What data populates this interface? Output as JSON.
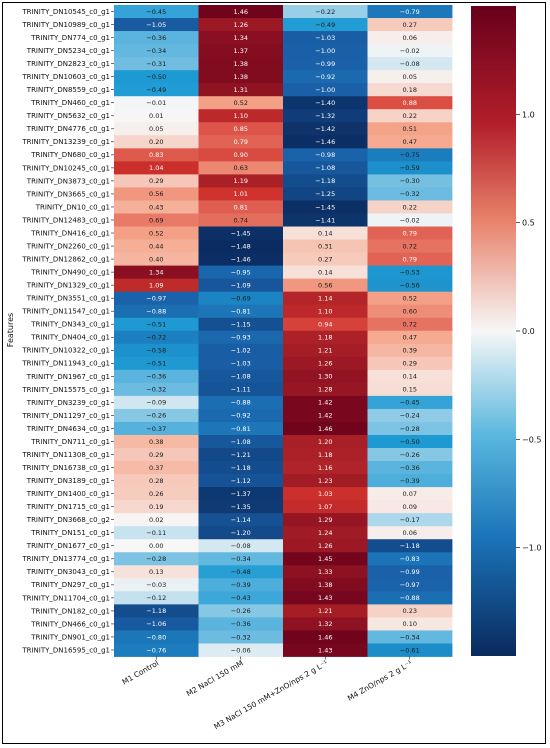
{
  "chart_data": {
    "type": "heatmap",
    "ylabel": "Features",
    "columns": [
      "M1 Control",
      "M2 NaCl 150 mM",
      "M3 NaCl 150 mM+ZnO/nps 2 g L⁻¹",
      "M4 ZnO/nps 2 g L⁻¹"
    ],
    "rows": [
      "TRINITY_DN10545_c0_g1",
      "TRINITY_DN10989_c0_g1",
      "TRINITY_DN774_c0_g1",
      "TRINITY_DN5234_c0_g1",
      "TRINITY_DN2823_c0_g1",
      "TRINITY_DN10603_c0_g1",
      "TRINITY_DN8559_c0_g1",
      "TRINITY_DN460_c0_g1",
      "TRINITY_DN5632_c0_g1",
      "TRINITY_DN4776_c0_g1",
      "TRINITY_DN13239_c0_g1",
      "TRINITY_DN680_c0_g1",
      "TRINITY_DN10245_c0_g1",
      "TRINITY_DN3873_c0_g1",
      "TRINITY_DN3665_c0_g1",
      "TRINITY_DN10_c0_g1",
      "TRINITY_DN12483_c0_g1",
      "TRINITY_DN416_c0_g1",
      "TRINITY_DN2260_c0_g1",
      "TRINITY_DN12862_c0_g1",
      "TRINITY_DN490_c0_g1",
      "TRINITY_DN1329_c0_g1",
      "TRINITY_DN3551_c0_g1",
      "TRINITY_DN11547_c0_g1",
      "TRINITY_DN343_c0_g1",
      "TRINITY_DN404_c0_g1",
      "TRINITY_DN10322_c0_g1",
      "TRINITY_DN11943_c0_g1",
      "TRINITY_DN1967_c0_g1",
      "TRINITY_DN15575_c0_g1",
      "TRINITY_DN3239_c0_g1",
      "TRINITY_DN11297_c0_g1",
      "TRINITY_DN4634_c0_g1",
      "TRINITY_DN711_c0_g1",
      "TRINITY_DN11308_c0_g1",
      "TRINITY_DN16738_c0_g1",
      "TRINITY_DN3189_c0_g1",
      "TRINITY_DN1400_c0_g1",
      "TRINITY_DN1715_c0_g1",
      "TRINITY_DN3668_c0_g2",
      "TRINITY_DN151_c0_g1",
      "TRINITY_DN1677_c0_g1",
      "TRINITY_DN13774_c0_g1",
      "TRINITY_DN3043_c0_g1",
      "TRINITY_DN297_c0_g1",
      "TRINITY_DN11704_c0_g1",
      "TRINITY_DN182_c0_g1",
      "TRINITY_DN466_c0_g1",
      "TRINITY_DN901_c0_g1",
      "TRINITY_DN16595_c0_g1"
    ],
    "values": [
      [
        -0.45,
        1.46,
        -0.22,
        -0.79
      ],
      [
        -1.05,
        1.26,
        -0.49,
        0.27
      ],
      [
        -0.36,
        1.34,
        -1.03,
        0.06
      ],
      [
        -0.34,
        1.37,
        -1.0,
        -0.02
      ],
      [
        -0.31,
        1.38,
        -0.99,
        -0.08
      ],
      [
        -0.5,
        1.38,
        -0.92,
        0.05
      ],
      [
        -0.49,
        1.31,
        -1.0,
        0.18
      ],
      [
        -0.01,
        0.52,
        -1.4,
        0.88
      ],
      [
        0.01,
        1.1,
        -1.32,
        0.22
      ],
      [
        0.05,
        0.85,
        -1.42,
        0.51
      ],
      [
        0.2,
        0.79,
        -1.46,
        0.47
      ],
      [
        0.83,
        0.9,
        -0.98,
        -0.75
      ],
      [
        1.04,
        0.63,
        -1.08,
        -0.59
      ],
      [
        0.29,
        1.19,
        -1.18,
        -0.3
      ],
      [
        0.56,
        1.01,
        -1.25,
        -0.32
      ],
      [
        0.43,
        0.81,
        -1.45,
        0.22
      ],
      [
        0.69,
        0.74,
        -1.41,
        -0.02
      ],
      [
        0.52,
        -1.45,
        0.14,
        0.79
      ],
      [
        0.44,
        -1.48,
        0.31,
        0.72
      ],
      [
        0.4,
        -1.46,
        0.27,
        0.79
      ],
      [
        1.34,
        -0.95,
        0.14,
        -0.53
      ],
      [
        1.09,
        -1.09,
        0.56,
        -0.56
      ],
      [
        -0.97,
        -0.69,
        1.14,
        0.52
      ],
      [
        -0.88,
        -0.81,
        1.1,
        0.6
      ],
      [
        -0.51,
        -1.15,
        0.94,
        0.72
      ],
      [
        -0.72,
        -0.93,
        1.18,
        0.47
      ],
      [
        -0.58,
        -1.02,
        1.21,
        0.39
      ],
      [
        -0.51,
        -1.03,
        1.26,
        0.29
      ],
      [
        -0.36,
        -1.08,
        1.3,
        0.14
      ],
      [
        -0.32,
        -1.11,
        1.28,
        0.15
      ],
      [
        -0.09,
        -0.88,
        1.42,
        -0.45
      ],
      [
        -0.26,
        -0.92,
        1.42,
        -0.24
      ],
      [
        -0.37,
        -0.81,
        1.46,
        -0.28
      ],
      [
        0.38,
        -1.08,
        1.2,
        -0.5
      ],
      [
        0.29,
        -1.21,
        1.18,
        -0.26
      ],
      [
        0.37,
        -1.18,
        1.16,
        -0.36
      ],
      [
        0.28,
        -1.12,
        1.23,
        -0.39
      ],
      [
        0.26,
        -1.37,
        1.03,
        0.07
      ],
      [
        0.19,
        -1.35,
        1.07,
        0.09
      ],
      [
        0.02,
        -1.14,
        1.29,
        -0.17
      ],
      [
        -0.11,
        -1.2,
        1.24,
        0.06
      ],
      [
        0.0,
        -0.08,
        1.26,
        -1.18
      ],
      [
        -0.28,
        -0.34,
        1.45,
        -0.83
      ],
      [
        0.13,
        -0.48,
        1.33,
        -0.99
      ],
      [
        -0.03,
        -0.39,
        1.38,
        -0.97
      ],
      [
        -0.12,
        -0.43,
        1.43,
        -0.88
      ],
      [
        -1.18,
        -0.26,
        1.21,
        0.23
      ],
      [
        -1.06,
        -0.36,
        1.32,
        0.1
      ],
      [
        -0.8,
        -0.32,
        1.46,
        -0.34
      ],
      [
        -0.76,
        -0.06,
        1.43,
        -0.61
      ]
    ],
    "value_range": [
      -1.5,
      1.5
    ],
    "colorbar_ticks": [
      1.0,
      0.5,
      0.0,
      -0.5,
      -1.0
    ],
    "colormap": [
      "#0a2a5e",
      "#1a60a8",
      "#1e9ad3",
      "#f7f7f7",
      "#f5a58a",
      "#d2332e",
      "#68001b"
    ]
  }
}
